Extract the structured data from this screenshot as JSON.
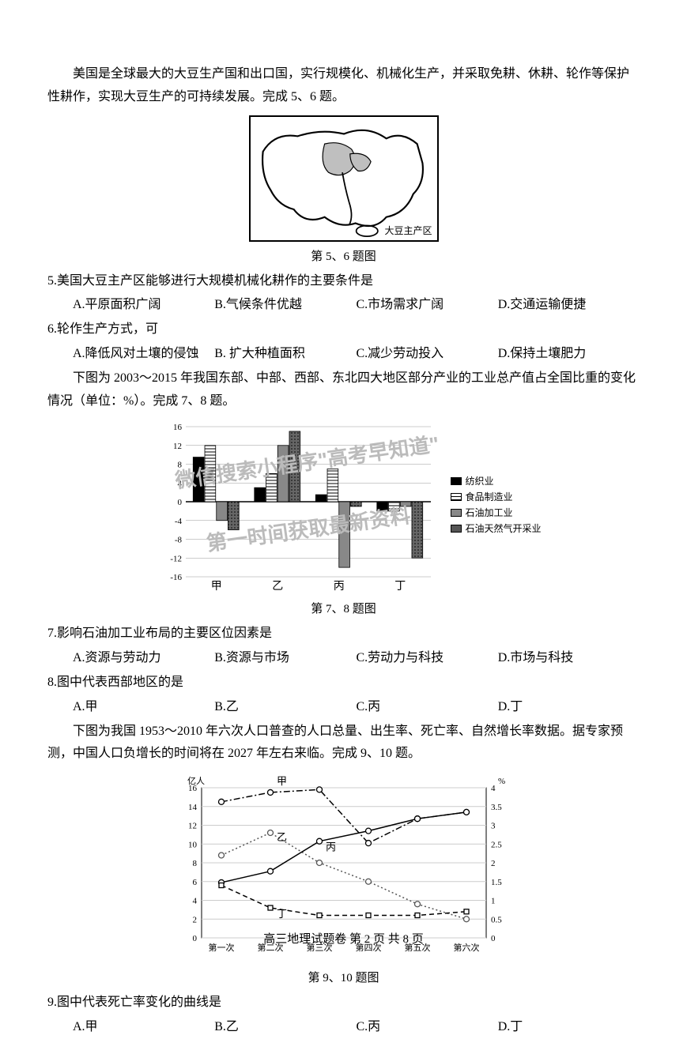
{
  "intro56": "美国是全球最大的大豆生产国和出口国，实行规模化、机械化生产，并采取免耕、休耕、轮作等保护性耕作，实现大豆生产的可持续发展。完成 5、6 题。",
  "mapLabel": "大豆主产区",
  "caption56": "第 5、6 题图",
  "q5": {
    "stem": "5.美国大豆主产区能够进行大规模机械化耕作的主要条件是",
    "A": "A.平原面积广阔",
    "B": "B.气候条件优越",
    "C": "C.市场需求广阔",
    "D": "D.交通运输便捷"
  },
  "q6": {
    "stem": "6.轮作生产方式，可",
    "A": "A.降低风对土壤的侵蚀",
    "B": "B. 扩大种植面积",
    "C": "C.减少劳动投入",
    "D": "D.保持土壤肥力"
  },
  "intro78": "下图为 2003～2015 年我国东部、中部、西部、东北四大地区部分产业的工业总产值占全国比重的变化情况（单位：%）。完成 7、8 题。",
  "barChart": {
    "type": "bar",
    "yticks": [
      -16,
      -12,
      -8,
      -4,
      0,
      4,
      8,
      12,
      16
    ],
    "categories": [
      "甲",
      "乙",
      "丙",
      "丁"
    ],
    "series": [
      {
        "name": "纺织业",
        "color": "#000000",
        "pattern": "solid"
      },
      {
        "name": "食品制造业",
        "color": "#ffffff",
        "pattern": "hlines"
      },
      {
        "name": "石油加工业",
        "color": "#888888",
        "pattern": "solid"
      },
      {
        "name": "石油天然气开采业",
        "color": "#444444",
        "pattern": "dots"
      }
    ],
    "values": {
      "甲": [
        9.5,
        12,
        -4,
        -6
      ],
      "乙": [
        3,
        6,
        12,
        15
      ],
      "丙": [
        1.5,
        7,
        -14,
        -1
      ],
      "丁": [
        -2,
        -2,
        -1,
        -12
      ]
    },
    "grid_color": "#999999",
    "background_color": "#ffffff",
    "bar_width": 0.18,
    "label_fontsize": 12
  },
  "caption78": "第 7、8 题图",
  "q7": {
    "stem": "7.影响石油加工业布局的主要区位因素是",
    "A": "A.资源与劳动力",
    "B": "B.资源与市场",
    "C": "C.劳动力与科技",
    "D": "D.市场与科技"
  },
  "q8": {
    "stem": "8.图中代表西部地区的是",
    "A": "A.甲",
    "B": "B.乙",
    "C": "C.丙",
    "D": "D.丁"
  },
  "intro910": "下图为我国 1953～2010 年六次人口普查的人口总量、出生率、死亡率、自然增长率数据。据专家预测，中国人口负增长的时间将在 2027 年左右来临。完成 9、10 题。",
  "lineChart": {
    "type": "line",
    "xlabels": [
      "第一次",
      "第二次",
      "第三次",
      "第四次",
      "第五次",
      "第六次"
    ],
    "leftAxis": {
      "label": "亿人",
      "min": 0,
      "max": 16,
      "step": 2
    },
    "rightAxis": {
      "label": "%",
      "min": 0,
      "max": 4,
      "step": 0.5
    },
    "series": {
      "甲": {
        "style": "dash-dot",
        "marker": "circle",
        "color": "#000",
        "axis": "left",
        "values": [
          14.5,
          15.5,
          15.8,
          10.1,
          12.7,
          13.4
        ]
      },
      "乙": {
        "style": "dotted",
        "marker": "diamond",
        "color": "#555",
        "axis": "right",
        "values": [
          2.2,
          2.8,
          2.0,
          1.5,
          0.9,
          0.5
        ]
      },
      "丙": {
        "style": "solid",
        "marker": "circle",
        "color": "#000",
        "axis": "left",
        "values": [
          5.9,
          7.1,
          10.3,
          11.4,
          12.7,
          13.4
        ]
      },
      "丁": {
        "style": "dashed",
        "marker": "square",
        "color": "#000",
        "axis": "right",
        "values": [
          1.4,
          0.8,
          0.6,
          0.6,
          0.6,
          0.7
        ]
      }
    },
    "grid_color": "#cccccc",
    "background_color": "#ffffff",
    "label_fontsize": 11
  },
  "caption910": "第 9、10 题图",
  "q9": {
    "stem": "9.图中代表死亡率变化的曲线是",
    "A": "A.甲",
    "B": "B.乙",
    "C": "C.丙",
    "D": "D.丁"
  },
  "watermark1": "微信搜索小程序\"高考早知道\"",
  "watermark2": "第一时间获取最新资料",
  "footer": "高三地理试题卷  第 2 页  共 8 页"
}
